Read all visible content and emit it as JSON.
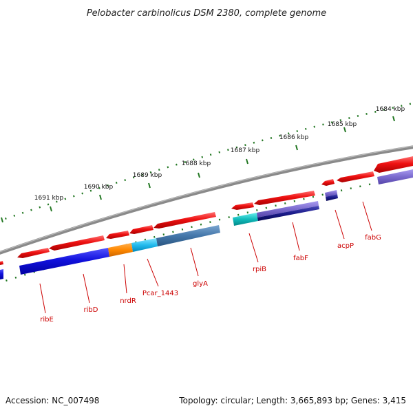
{
  "title": "Pelobacter carbinolicus DSM 2380, complete genome",
  "footer": {
    "accession": "Accession: NC_007498",
    "topology": "Topology: circular; Length: 3,665,893 bp; Genes: 3,415"
  },
  "ticks": [
    {
      "label": "1684 kbp"
    },
    {
      "label": "1685 kbp"
    },
    {
      "label": "1686 kbp"
    },
    {
      "label": "1687 kbp"
    },
    {
      "label": "1688 kbp"
    },
    {
      "label": "1689 kbp"
    },
    {
      "label": "1690 kbp"
    },
    {
      "label": "1691 kbp"
    }
  ],
  "genes": [
    {
      "name": "ribE"
    },
    {
      "name": "ribD"
    },
    {
      "name": "nrdR"
    },
    {
      "name": "Pcar_1443"
    },
    {
      "name": "glyA"
    },
    {
      "name": "rpiB"
    },
    {
      "name": "fabF"
    },
    {
      "name": "acpP"
    },
    {
      "name": "fabG"
    }
  ],
  "colors": {
    "backbone": "#808080",
    "cds": "#ee1111",
    "blue": "#1111dd",
    "orange": "#ff8800",
    "cyan": "#22bbee",
    "steel": "#4477aa",
    "teal": "#11bbbb",
    "navy": "#1a1a8a",
    "lavender": "#7a6acd",
    "tick": "#227722"
  }
}
